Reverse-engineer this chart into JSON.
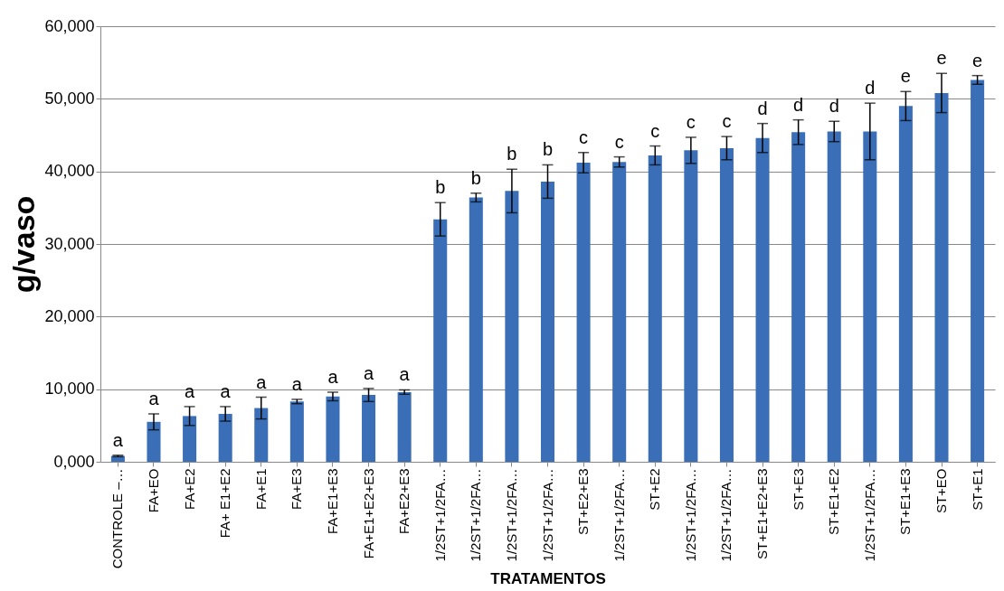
{
  "chart_data": {
    "type": "bar",
    "xlabel": "TRATAMENTOS",
    "ylabel": "g/vaso",
    "categories": [
      "CONTROLE –…",
      "FA+EO",
      "FA+E2",
      "FA+ E1+E2",
      "FA+E1",
      "FA+E3",
      "FA+E1+E3",
      "FA+E1+E2+E3",
      "FA+E2+E3",
      "1/2ST+1/2FA…",
      "1/2ST+1/2FA…",
      "1/2ST+1/2FA…",
      "1/2ST+1/2FA…",
      "ST+E2+E3",
      "1/2ST+1/2FA…",
      "ST+E2",
      "1/2ST+1/2FA…",
      "1/2ST+1/2FA…",
      "ST+E1+E2+E3",
      "ST+E3",
      "ST+E1+E2",
      "1/2ST+1/2FA…",
      "ST+E1+E3",
      "ST+EO",
      "ST+E1"
    ],
    "values": [
      800,
      5500,
      6300,
      6600,
      7400,
      8300,
      9000,
      9200,
      9600,
      33400,
      36400,
      37300,
      38600,
      41200,
      41300,
      42200,
      42900,
      43200,
      44600,
      45400,
      45500,
      45500,
      49000,
      50800,
      52600
    ],
    "errors": [
      100,
      1100,
      1300,
      1000,
      1500,
      300,
      600,
      900,
      300,
      2300,
      600,
      3000,
      2300,
      1400,
      700,
      1300,
      1800,
      1600,
      2000,
      1700,
      1400,
      3900,
      2000,
      2700,
      600
    ],
    "value_labels": [
      "a",
      "a",
      "a",
      "a",
      "a",
      "a",
      "a",
      "a",
      "a",
      "b",
      "b",
      "b",
      "b",
      "c",
      "c",
      "c",
      "c",
      "c",
      "d",
      "d",
      "d",
      "d",
      "e",
      "e",
      "e"
    ],
    "color": "#3a6fb8",
    "ylim": [
      0,
      60000
    ],
    "yticks": [
      {
        "value": 0,
        "label": "0,000"
      },
      {
        "value": 10000,
        "label": "10,000"
      },
      {
        "value": 20000,
        "label": "20,000"
      },
      {
        "value": 30000,
        "label": "30,000"
      },
      {
        "value": 40000,
        "label": "40,000"
      },
      {
        "value": 50000,
        "label": "50,000"
      },
      {
        "value": 60000,
        "label": "60,000"
      }
    ],
    "grid": "y"
  }
}
